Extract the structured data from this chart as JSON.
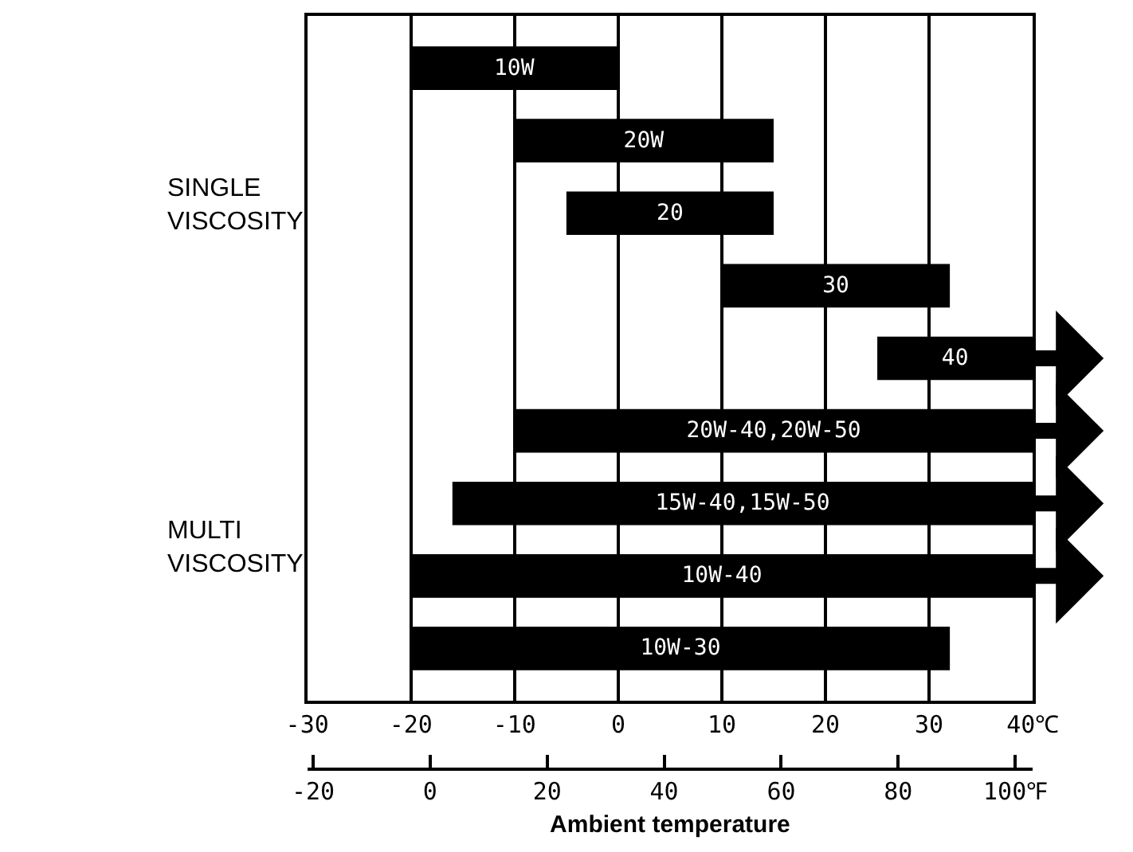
{
  "chart_data": {
    "type": "bar",
    "orientation": "horizontal",
    "xlabel": "Ambient temperature",
    "categories": [
      "10W",
      "20W",
      "20",
      "30",
      "40",
      "20W-40,20W-50",
      "15W-40,15W-50",
      "10W-40",
      "10W-30"
    ],
    "base": [
      -20,
      -10,
      -5,
      10,
      25,
      -10,
      -16,
      -20,
      -20
    ],
    "values": [
      20,
      25,
      20,
      22,
      15,
      50,
      56,
      60,
      52
    ],
    "color": "#000000",
    "annotations": [
      "SINGLE VISCOSITY",
      "MULTI VISCOSITY"
    ],
    "xlim": [
      -30,
      40
    ],
    "xticks": [
      -30,
      -20,
      -10,
      0,
      10,
      20,
      30,
      {
        "value": 40,
        "label": "40℃"
      }
    ],
    "x2lim": [
      -21,
      103
    ],
    "x2ticks": [
      -20,
      0,
      20,
      40,
      60,
      80,
      {
        "value": 100,
        "label": "100℉"
      }
    ],
    "grid": "x",
    "tick_labels": "x"
  }
}
